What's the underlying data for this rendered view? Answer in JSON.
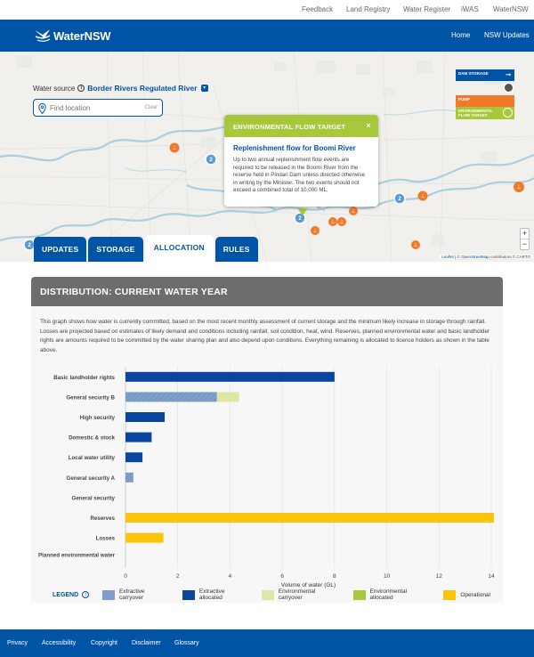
{
  "topbar": {
    "links": [
      "Feedback",
      "Land Registry",
      "Water Register",
      "iWAS",
      "WaterNSW"
    ]
  },
  "header": {
    "logo_text": "WaterNSW",
    "nav": [
      "Home",
      "NSW Updates"
    ]
  },
  "map": {
    "water_source_label": "Water source",
    "water_source_value": "Border Rivers Regulated River",
    "find_placeholder": "Find location",
    "clear_label": "Clear",
    "legend": {
      "dam_storage": "DAM STORAGE",
      "pump": "PUMP",
      "environmental_flow_target": "ENVIRONMENTAL FLOW TARGET"
    },
    "popup": {
      "header": "ENVIRONMENTAL FLOW TARGET",
      "close": "×",
      "title": "Replenishment flow for Boomi River",
      "body": "Up to two annual replenishment flow events are required to be released in the Boomi River from the reserve held in Pindari Dam unless directed otherwise in writing by the Minister. The two events should not exceed a combined total of 10,000 ML."
    },
    "zoom_in": "+",
    "zoom_out": "−",
    "attribution_leaflet": "Leaflet",
    "attribution_sep": " | © ",
    "attribution_osm": "OpenStreetMap",
    "attribution_rest": " contributors © CARTO",
    "cluster_counts": [
      "2",
      "2",
      "2",
      "2"
    ]
  },
  "tabs": [
    {
      "label": "UPDATES",
      "active": false
    },
    {
      "label": "STORAGE",
      "active": false
    },
    {
      "label": "ALLOCATION",
      "active": true
    },
    {
      "label": "RULES",
      "active": false
    }
  ],
  "distribution": {
    "title": "DISTRIBUTION: CURRENT WATER YEAR",
    "description": "This graph shows how water is currently committed, based on the most recent monthly assessment of current storage and the minimum likely increase in storage through rainfall. Losses are projected based on estimates of likely demand and conditions including rainfall, soil condition, heat, wind. Reserves, planned environmental water and basic landholder rights are amounts required to be committed by the water sharing plan and also depend upon conditions. Everything remaining is allocated to licence holders as shown in the table above."
  },
  "colors": {
    "brand_blue": "#0054a6",
    "extractive_carryover": "#7f9fca",
    "extractive_allocated": "#0a46a0",
    "environmental_carryover": "#dfe7a6",
    "environmental_allocated": "#a6c83a",
    "operational": "#fcc30b",
    "pump_orange": "#f07a2a"
  },
  "legend": {
    "title": "LEGEND",
    "items": [
      {
        "label": "Extractive carryover",
        "color": "#7f9fca"
      },
      {
        "label": "Extractive allocated",
        "color": "#0a46a0"
      },
      {
        "label": "Environmental carryover",
        "color": "#dfe7a6"
      },
      {
        "label": "Environmental allocated",
        "color": "#a6c83a"
      },
      {
        "label": "Operational",
        "color": "#fcc30b"
      }
    ]
  },
  "chart_data": {
    "type": "bar",
    "orientation": "horizontal",
    "stacked": true,
    "categories": [
      "Basic landholder rights",
      "General security B",
      "High security",
      "Domestic & stock",
      "Local water utility",
      "General security A",
      "General security",
      "Reserves",
      "Losses",
      "Planned environmental water"
    ],
    "series": [
      {
        "name": "Extractive carryover",
        "values": [
          0,
          3.5,
          0,
          0,
          0,
          0.3,
          0,
          0,
          0,
          0
        ]
      },
      {
        "name": "Extractive allocated",
        "values": [
          8.0,
          0,
          1.5,
          1.0,
          0.65,
          0,
          0,
          0,
          0,
          0
        ]
      },
      {
        "name": "Environmental carryover",
        "values": [
          0,
          0.85,
          0,
          0,
          0,
          0,
          0,
          0,
          0,
          0
        ]
      },
      {
        "name": "Environmental allocated",
        "values": [
          0,
          0,
          0,
          0,
          0,
          0,
          0,
          0,
          0,
          0
        ]
      },
      {
        "name": "Operational",
        "values": [
          0,
          0,
          0,
          0,
          0,
          0,
          0,
          14.1,
          1.45,
          0
        ]
      }
    ],
    "xlabel": "Volume of water (GL)",
    "ylabel": "",
    "xlim": [
      0,
      14
    ],
    "xticks": [
      0,
      2,
      4,
      6,
      8,
      10,
      12,
      14
    ],
    "grid": true,
    "legend_position": "bottom"
  },
  "footer": {
    "links": [
      "Privacy",
      "Accessibility",
      "Copyright",
      "Disclaimer",
      "Glossary"
    ]
  }
}
